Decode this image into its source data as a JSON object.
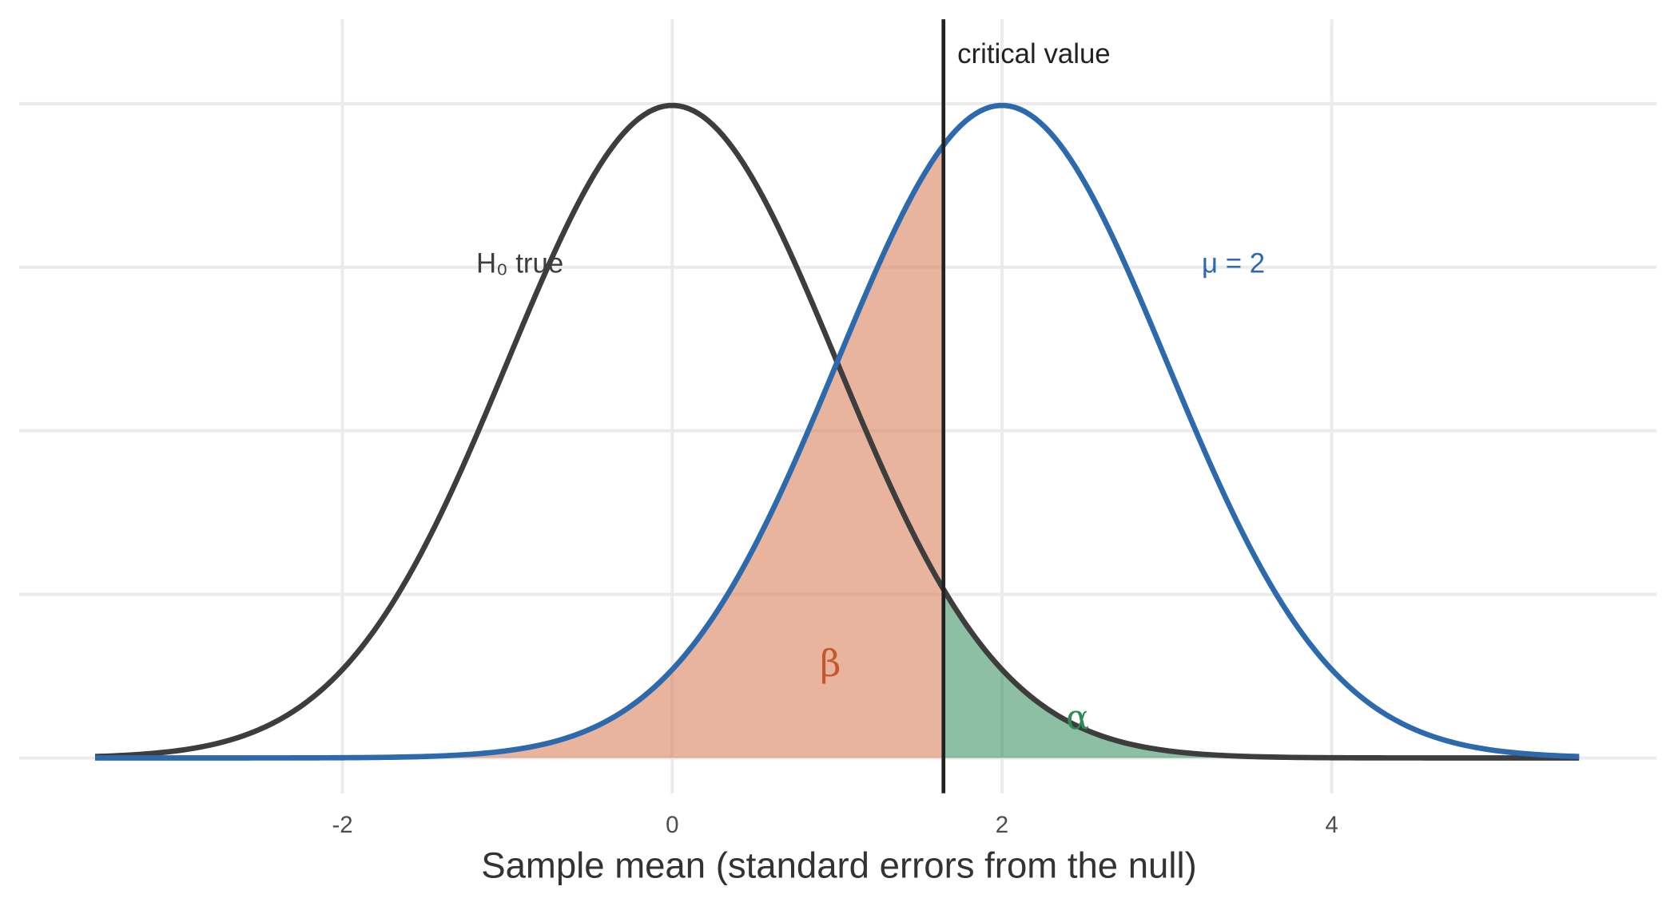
{
  "chart_data": {
    "type": "density",
    "x_label": "Sample mean (standard errors from the null)",
    "xlim": [
      -3.96,
      5.97
    ],
    "ylim": [
      -0.0216,
      0.4516
    ],
    "xticks": [
      -2,
      0,
      2,
      4
    ],
    "ygrid": [
      0,
      0.1,
      0.2,
      0.3,
      0.4
    ],
    "grid": true,
    "curve_range": [
      -3.5,
      5.5
    ],
    "series": [
      {
        "name": "H₀ true",
        "mean": 0,
        "sd": 1,
        "color": "#3d3d3d"
      },
      {
        "name": "μ = 2",
        "mean": 2,
        "sd": 1,
        "color": "#2c69ad"
      }
    ],
    "critical_value": 1.645,
    "critical_label": "critical value",
    "regions": [
      {
        "label": "β",
        "color": "#d9825b",
        "text_color": "#c4582c"
      },
      {
        "label": "α",
        "color": "#2e8b57",
        "text_color": "#2e8b57"
      }
    ]
  }
}
